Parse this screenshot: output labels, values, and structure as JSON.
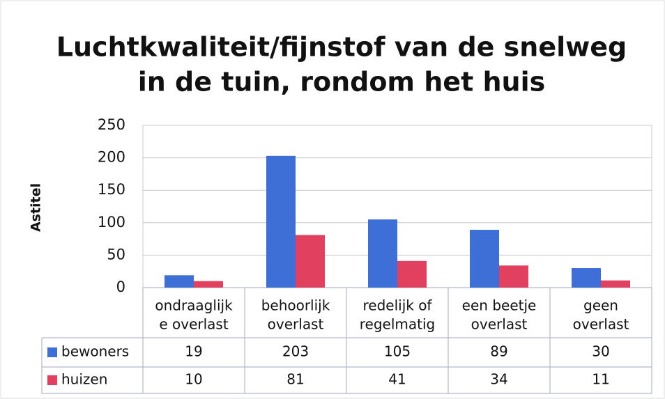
{
  "chart_data": {
    "type": "bar",
    "title": [
      "Luchtkwaliteit/fijnstof van de snelweg",
      "in de tuin, rondom het huis"
    ],
    "ylabel": "Astitel",
    "categories": [
      [
        "ondraaglijk",
        "e overlast"
      ],
      [
        "behoorlijk",
        "overlast"
      ],
      [
        "redelijk of",
        "regelmatig"
      ],
      [
        "een beetje",
        "overlast"
      ],
      [
        "geen",
        "overlast"
      ]
    ],
    "series": [
      {
        "name": "bewoners",
        "color": "#3d6fd6",
        "values": [
          19,
          203,
          105,
          89,
          30
        ]
      },
      {
        "name": "huizen",
        "color": "#e2405f",
        "values": [
          10,
          81,
          41,
          34,
          11
        ]
      }
    ],
    "ylim": [
      0,
      250
    ],
    "yticks": [
      0,
      50,
      100,
      150,
      200,
      250
    ],
    "grid": true
  }
}
